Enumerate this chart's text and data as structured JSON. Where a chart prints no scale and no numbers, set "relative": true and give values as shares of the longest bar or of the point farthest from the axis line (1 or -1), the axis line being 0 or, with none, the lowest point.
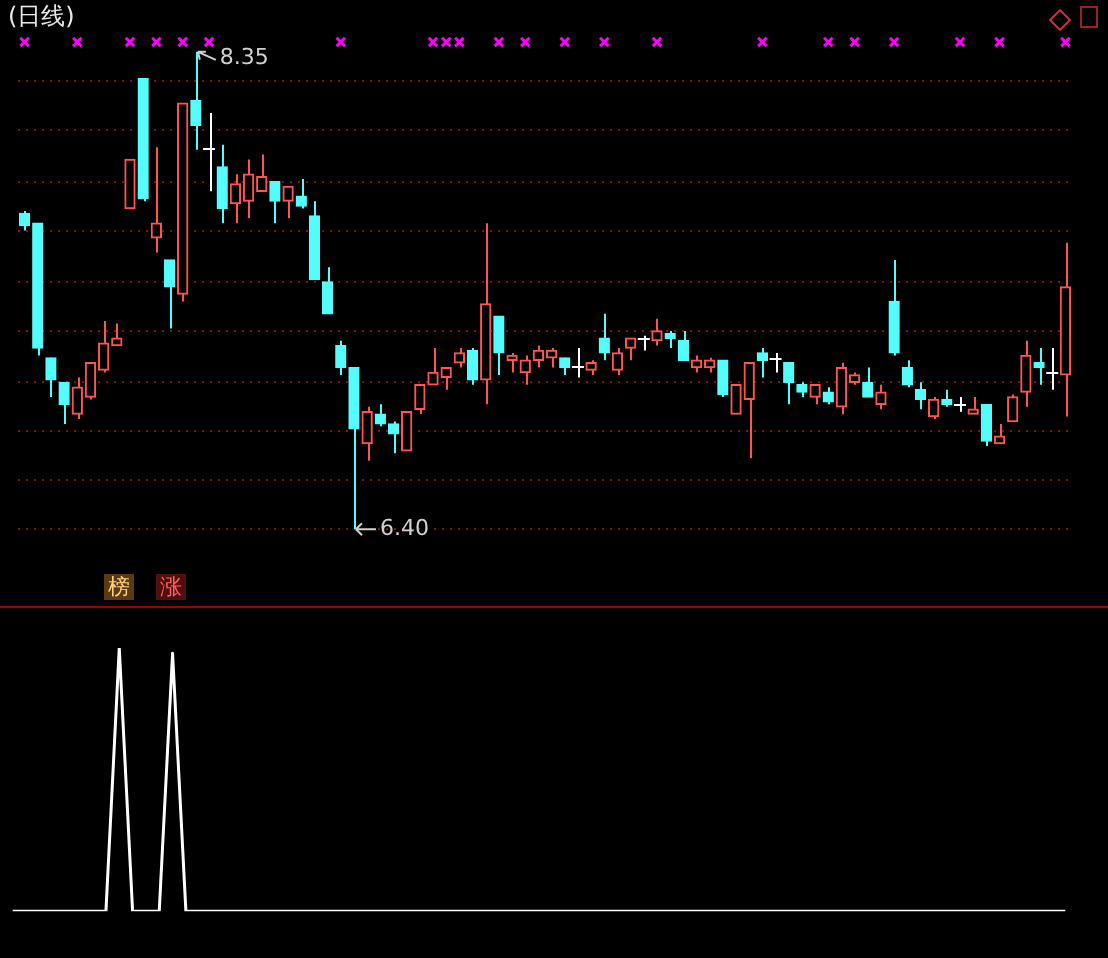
{
  "chart_data": [
    {
      "type": "candlestick",
      "title": "(日线)",
      "categories": [
        null,
        null,
        null,
        null,
        null,
        null,
        null,
        null,
        null,
        null,
        null,
        null,
        null,
        null,
        null,
        null,
        null,
        null,
        null,
        null,
        null,
        null,
        null,
        null,
        null,
        null,
        null,
        null,
        null,
        null,
        null,
        null,
        null,
        null,
        null,
        null,
        null,
        null,
        null,
        null,
        null,
        null,
        null,
        null,
        null,
        null,
        null,
        null,
        null,
        null,
        null,
        null,
        null,
        null,
        null,
        null,
        null,
        null,
        null,
        null,
        null,
        null,
        null,
        null,
        null,
        null,
        null,
        null,
        null,
        null,
        null,
        null,
        null,
        null,
        null,
        null,
        null,
        null,
        null,
        null
      ],
      "ohlc": [
        [
          7.69,
          7.7,
          7.62,
          7.64
        ],
        [
          7.65,
          7.65,
          7.11,
          7.14
        ],
        [
          7.1,
          7.1,
          6.94,
          7.01
        ],
        [
          7.0,
          7.0,
          6.83,
          6.91
        ],
        [
          6.87,
          7.02,
          6.85,
          6.98
        ],
        [
          6.94,
          7.08,
          6.93,
          7.08
        ],
        [
          7.05,
          7.25,
          7.04,
          7.16
        ],
        [
          7.15,
          7.24,
          7.15,
          7.18
        ],
        [
          7.71,
          7.91,
          7.71,
          7.91
        ],
        [
          8.24,
          8.24,
          7.74,
          7.75
        ],
        [
          7.59,
          7.96,
          7.53,
          7.65
        ],
        [
          7.5,
          7.5,
          7.22,
          7.39
        ],
        [
          7.36,
          8.14,
          7.33,
          8.14
        ],
        [
          8.15,
          8.35,
          7.95,
          8.05
        ],
        [
          7.96,
          8.1,
          7.78,
          7.96
        ],
        [
          7.88,
          7.97,
          7.65,
          7.71
        ],
        [
          7.73,
          7.85,
          7.65,
          7.81
        ],
        [
          7.74,
          7.91,
          7.67,
          7.85
        ],
        [
          7.78,
          7.93,
          7.78,
          7.84
        ],
        [
          7.82,
          7.82,
          7.65,
          7.74
        ],
        [
          7.74,
          7.8,
          7.67,
          7.8
        ],
        [
          7.76,
          7.83,
          7.71,
          7.72
        ],
        [
          7.68,
          7.74,
          7.42,
          7.42
        ],
        [
          7.41,
          7.47,
          7.28,
          7.28
        ],
        [
          7.15,
          7.17,
          7.03,
          7.06
        ],
        [
          7.06,
          7.06,
          6.4,
          6.81
        ],
        [
          6.75,
          6.9,
          6.68,
          6.88
        ],
        [
          6.87,
          6.91,
          6.82,
          6.83
        ],
        [
          6.83,
          6.84,
          6.71,
          6.79
        ],
        [
          6.72,
          6.88,
          6.72,
          6.88
        ],
        [
          6.89,
          6.99,
          6.87,
          6.99
        ],
        [
          6.99,
          7.14,
          6.99,
          7.04
        ],
        [
          7.02,
          7.06,
          6.97,
          7.06
        ],
        [
          7.08,
          7.14,
          7.06,
          7.12
        ],
        [
          7.13,
          7.14,
          6.99,
          7.01
        ],
        [
          7.01,
          7.65,
          6.91,
          7.32
        ],
        [
          7.27,
          7.27,
          7.03,
          7.12
        ],
        [
          7.09,
          7.12,
          7.04,
          7.11
        ],
        [
          7.04,
          7.11,
          6.99,
          7.09
        ],
        [
          7.09,
          7.15,
          7.06,
          7.13
        ],
        [
          7.1,
          7.14,
          7.06,
          7.13
        ],
        [
          7.1,
          7.1,
          7.03,
          7.06
        ],
        [
          7.07,
          7.14,
          7.02,
          7.07
        ],
        [
          7.05,
          7.09,
          7.03,
          7.08
        ],
        [
          7.18,
          7.28,
          7.09,
          7.12
        ],
        [
          7.05,
          7.14,
          7.03,
          7.12
        ],
        [
          7.14,
          7.18,
          7.09,
          7.18
        ],
        [
          7.18,
          7.19,
          7.13,
          7.18
        ],
        [
          7.17,
          7.26,
          7.15,
          7.21
        ],
        [
          7.2,
          7.21,
          7.14,
          7.18
        ],
        [
          7.17,
          7.21,
          7.09,
          7.09
        ],
        [
          7.06,
          7.11,
          7.04,
          7.09
        ],
        [
          7.06,
          7.1,
          7.04,
          7.09
        ],
        [
          7.09,
          7.09,
          6.94,
          6.95
        ],
        [
          6.87,
          6.99,
          6.87,
          6.99
        ],
        [
          6.93,
          7.08,
          6.69,
          7.08
        ],
        [
          7.12,
          7.14,
          7.02,
          7.09
        ],
        [
          7.1,
          7.12,
          7.04,
          7.1
        ],
        [
          7.08,
          7.08,
          6.91,
          7.0
        ],
        [
          6.99,
          7.0,
          6.94,
          6.96
        ],
        [
          6.94,
          6.99,
          6.91,
          6.99
        ],
        [
          6.96,
          6.98,
          6.91,
          6.92
        ],
        [
          6.9,
          7.08,
          6.87,
          7.06
        ],
        [
          7.0,
          7.04,
          6.99,
          7.03
        ],
        [
          7.0,
          7.06,
          6.94,
          6.94
        ],
        [
          6.91,
          6.99,
          6.89,
          6.96
        ],
        [
          7.33,
          7.5,
          7.11,
          7.12
        ],
        [
          7.06,
          7.09,
          6.98,
          6.99
        ],
        [
          6.97,
          7.0,
          6.89,
          6.93
        ],
        [
          6.86,
          6.94,
          6.85,
          6.93
        ],
        [
          6.93,
          6.97,
          6.9,
          6.91
        ],
        [
          6.91,
          6.94,
          6.88,
          6.91
        ],
        [
          6.87,
          6.94,
          6.87,
          6.89
        ],
        [
          6.91,
          6.91,
          6.74,
          6.76
        ],
        [
          6.75,
          6.83,
          6.75,
          6.78
        ],
        [
          6.84,
          6.95,
          6.84,
          6.94
        ],
        [
          6.96,
          7.17,
          6.9,
          7.11
        ],
        [
          7.08,
          7.14,
          6.99,
          7.06
        ],
        [
          7.04,
          7.14,
          6.97,
          7.04
        ],
        [
          7.03,
          7.57,
          6.86,
          7.39
        ]
      ],
      "colors": [
        "#54fcfc",
        "#54fcfc",
        "#54fcfc",
        "#54fcfc",
        "#ff5454",
        "#ff5454",
        "#ff5454",
        "#ff5454",
        "#ff5454",
        "#54fcfc",
        "#ff5454",
        "#54fcfc",
        "#ff5454",
        "#54fcfc",
        "#ffffff",
        "#54fcfc",
        "#ff5454",
        "#ff5454",
        "#ff5454",
        "#54fcfc",
        "#ff5454",
        "#54fcfc",
        "#54fcfc",
        "#54fcfc",
        "#54fcfc",
        "#54fcfc",
        "#ff5454",
        "#54fcfc",
        "#54fcfc",
        "#ff5454",
        "#ff5454",
        "#ff5454",
        "#ff5454",
        "#ff5454",
        "#54fcfc",
        "#ff5454",
        "#54fcfc",
        "#ff5454",
        "#ff5454",
        "#ff5454",
        "#ff5454",
        "#54fcfc",
        "#ffffff",
        "#ff5454",
        "#54fcfc",
        "#ff5454",
        "#ff5454",
        "#ffffff",
        "#ff5454",
        "#54fcfc",
        "#54fcfc",
        "#ff5454",
        "#ff5454",
        "#54fcfc",
        "#ff5454",
        "#ff5454",
        "#54fcfc",
        "#ffffff",
        "#54fcfc",
        "#54fcfc",
        "#ff5454",
        "#54fcfc",
        "#ff5454",
        "#ff5454",
        "#54fcfc",
        "#ff5454",
        "#54fcfc",
        "#54fcfc",
        "#54fcfc",
        "#ff5454",
        "#54fcfc",
        "#ffffff",
        "#ff5454",
        "#54fcfc",
        "#ff5454",
        "#ff5454",
        "#ff5454",
        "#54fcfc",
        "#ffffff",
        "#ff5454"
      ],
      "series": [
        {
          "type": "scatter",
          "color": "#ff00ff",
          "marker": "cross",
          "values": [
            8.39,
            null,
            null,
            null,
            8.39,
            null,
            null,
            null,
            8.39,
            null,
            8.39,
            null,
            8.39,
            null,
            8.39,
            null,
            null,
            null,
            null,
            null,
            null,
            null,
            null,
            null,
            8.39,
            null,
            null,
            null,
            null,
            null,
            null,
            8.39,
            8.39,
            8.39,
            null,
            null,
            8.39,
            null,
            8.39,
            null,
            null,
            8.39,
            null,
            null,
            8.39,
            null,
            null,
            null,
            8.39,
            null,
            null,
            null,
            null,
            null,
            null,
            null,
            8.39,
            null,
            null,
            null,
            null,
            8.39,
            null,
            8.39,
            null,
            null,
            8.39,
            null,
            null,
            null,
            null,
            8.39,
            null,
            null,
            8.39,
            null,
            null,
            null,
            null,
            8.39
          ]
        }
      ],
      "yticks": [
        {
          "value": 6.4,
          "label": null
        },
        {
          "value": 6.6,
          "label": null
        },
        {
          "value": 6.8,
          "label": null
        },
        {
          "value": 7.0,
          "label": null
        },
        {
          "value": 7.21,
          "label": null
        },
        {
          "value": 7.41,
          "label": null
        },
        {
          "value": 7.62,
          "label": null
        },
        {
          "value": 7.82,
          "label": null
        },
        {
          "value": 8.03,
          "label": null
        },
        {
          "value": 8.23,
          "label": null
        }
      ],
      "grid": "y",
      "annotations": [
        "8.35",
        "6.40",
        "榜",
        "涨"
      ]
    },
    {
      "type": "line",
      "relative": true,
      "color": "#ffffff",
      "marker": "none",
      "categories": [
        null,
        null,
        null,
        null,
        null,
        null,
        null,
        null,
        null,
        null,
        null,
        null,
        null,
        null,
        null,
        null,
        null,
        null,
        null,
        null,
        null,
        null,
        null,
        null,
        null,
        null,
        null,
        null,
        null,
        null,
        null,
        null,
        null,
        null,
        null,
        null,
        null,
        null,
        null,
        null,
        null,
        null,
        null,
        null,
        null,
        null,
        null,
        null,
        null,
        null,
        null,
        null,
        null,
        null,
        null,
        null,
        null,
        null,
        null,
        null,
        null,
        null,
        null,
        null,
        null,
        null,
        null,
        null,
        null,
        null,
        null,
        null,
        null,
        null,
        null,
        null,
        null,
        null,
        null,
        null
      ],
      "values": [
        0,
        0,
        0,
        0,
        0,
        0,
        0,
        0,
        1,
        0,
        0,
        0,
        0.98,
        0,
        0,
        0,
        0,
        0,
        0,
        0,
        0,
        0,
        0,
        0,
        0,
        0,
        0,
        0,
        0,
        0,
        0,
        0,
        0,
        0,
        0,
        0,
        0,
        0,
        0,
        0,
        0,
        0,
        0,
        0,
        0,
        0,
        0,
        0,
        0,
        0,
        0,
        0,
        0,
        0,
        0,
        0,
        0,
        0,
        0,
        0,
        0,
        0,
        0,
        0,
        0,
        0,
        0,
        0,
        0,
        0,
        0,
        0,
        0,
        0,
        0,
        0,
        0,
        0,
        0,
        0
      ]
    }
  ]
}
